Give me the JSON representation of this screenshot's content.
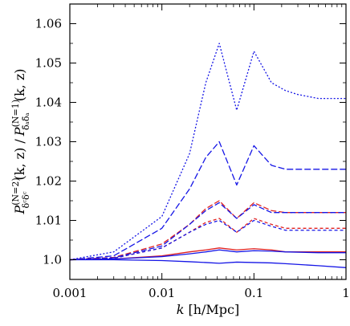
{
  "chart_data": {
    "type": "line",
    "title": "",
    "xlabel": "k [h/Mpc]",
    "xlabel_parts": {
      "var": "k",
      "unit": "[h/Mpc]"
    },
    "ylabel": "P^{(N=2)}_{δᶜδᶜ}(k,z) / P^{(N=1)}_{δ̄_A δ̄_A}(k,z)",
    "ylabel_parts": {
      "p1": "P",
      "sup1": "(N=2)",
      "sub1": "δᶜδᶜ",
      "args1": "(k, z) /",
      "p2": "P",
      "sup2": "(N=1)",
      "sub2": "δ̄ₐδ̄ₐ",
      "args2": "(k, z)"
    },
    "x_scale": "log",
    "xlim": [
      0.001,
      1
    ],
    "ylim": [
      0.995,
      1.065
    ],
    "x_ticks": [
      0.001,
      0.01,
      0.1,
      1
    ],
    "x_tick_labels": [
      "0.001",
      "0.01",
      "0.1",
      "1"
    ],
    "y_ticks": [
      1.0,
      1.01,
      1.02,
      1.03,
      1.04,
      1.05,
      1.06
    ],
    "y_tick_labels": [
      "1.0",
      "1.01",
      "1.02",
      "1.03",
      "1.04",
      "1.05",
      "1.06"
    ],
    "grid": false,
    "legend": "none",
    "colors": {
      "blue": "#1515e6",
      "red": "#e02020"
    },
    "series": [
      {
        "color": "#1515e6",
        "dash": "2,2.2",
        "values": [
          [
            0.001,
            1.0
          ],
          [
            0.003,
            1.002
          ],
          [
            0.01,
            1.011
          ],
          [
            0.02,
            1.027
          ],
          [
            0.03,
            1.045
          ],
          [
            0.042,
            1.055
          ],
          [
            0.065,
            1.038
          ],
          [
            0.1,
            1.053
          ],
          [
            0.155,
            1.045
          ],
          [
            0.22,
            1.043
          ],
          [
            0.3,
            1.042
          ],
          [
            0.5,
            1.041
          ],
          [
            1,
            1.041
          ]
        ]
      },
      {
        "color": "#1515e6",
        "dash": "8,3",
        "values": [
          [
            0.001,
            1.0
          ],
          [
            0.003,
            1.001
          ],
          [
            0.01,
            1.008
          ],
          [
            0.02,
            1.018
          ],
          [
            0.03,
            1.026
          ],
          [
            0.042,
            1.03
          ],
          [
            0.065,
            1.019
          ],
          [
            0.1,
            1.029
          ],
          [
            0.155,
            1.024
          ],
          [
            0.22,
            1.023
          ],
          [
            0.5,
            1.023
          ],
          [
            1,
            1.023
          ]
        ]
      },
      {
        "color": "#e02020",
        "dash": "7,3",
        "values": [
          [
            0.001,
            1.0
          ],
          [
            0.003,
            1.0006
          ],
          [
            0.01,
            1.004
          ],
          [
            0.02,
            1.009
          ],
          [
            0.03,
            1.013
          ],
          [
            0.042,
            1.015
          ],
          [
            0.065,
            1.0105
          ],
          [
            0.1,
            1.0145
          ],
          [
            0.155,
            1.0125
          ],
          [
            0.22,
            1.012
          ],
          [
            0.5,
            1.012
          ],
          [
            1,
            1.012
          ]
        ]
      },
      {
        "color": "#1515e6",
        "dash": "7,3",
        "values": [
          [
            0.001,
            1.0
          ],
          [
            0.003,
            1.0005
          ],
          [
            0.01,
            1.0035
          ],
          [
            0.02,
            1.009
          ],
          [
            0.03,
            1.0125
          ],
          [
            0.042,
            1.0145
          ],
          [
            0.065,
            1.0105
          ],
          [
            0.1,
            1.014
          ],
          [
            0.155,
            1.012
          ],
          [
            0.22,
            1.012
          ],
          [
            0.5,
            1.012
          ],
          [
            1,
            1.012
          ]
        ]
      },
      {
        "color": "#e02020",
        "dash": "4,3",
        "values": [
          [
            0.001,
            1.0
          ],
          [
            0.003,
            1.0004
          ],
          [
            0.01,
            1.003
          ],
          [
            0.02,
            1.007
          ],
          [
            0.03,
            1.0095
          ],
          [
            0.042,
            1.0105
          ],
          [
            0.065,
            1.007
          ],
          [
            0.1,
            1.0105
          ],
          [
            0.155,
            1.009
          ],
          [
            0.22,
            1.008
          ],
          [
            0.5,
            1.008
          ],
          [
            1,
            1.008
          ]
        ]
      },
      {
        "color": "#1515e6",
        "dash": "4,3",
        "values": [
          [
            0.001,
            1.0
          ],
          [
            0.003,
            1.0004
          ],
          [
            0.01,
            1.003
          ],
          [
            0.02,
            1.007
          ],
          [
            0.03,
            1.009
          ],
          [
            0.042,
            1.01
          ],
          [
            0.065,
            1.007
          ],
          [
            0.1,
            1.01
          ],
          [
            0.155,
            1.0085
          ],
          [
            0.22,
            1.0075
          ],
          [
            0.5,
            1.0075
          ],
          [
            1,
            1.0075
          ]
        ]
      },
      {
        "color": "#e02020",
        "dash": "",
        "values": [
          [
            0.001,
            1.0
          ],
          [
            0.003,
            1.0002
          ],
          [
            0.01,
            1.001
          ],
          [
            0.02,
            1.002
          ],
          [
            0.03,
            1.0025
          ],
          [
            0.042,
            1.003
          ],
          [
            0.065,
            1.0025
          ],
          [
            0.1,
            1.0028
          ],
          [
            0.155,
            1.0025
          ],
          [
            0.22,
            1.002
          ],
          [
            0.5,
            1.002
          ],
          [
            1,
            1.002
          ]
        ]
      },
      {
        "color": "#1515e6",
        "dash": "",
        "values": [
          [
            0.001,
            1.0
          ],
          [
            0.003,
            1.0002
          ],
          [
            0.01,
            1.0008
          ],
          [
            0.02,
            1.0015
          ],
          [
            0.03,
            1.002
          ],
          [
            0.042,
            1.0025
          ],
          [
            0.065,
            1.002
          ],
          [
            0.1,
            1.0023
          ],
          [
            0.155,
            1.0022
          ],
          [
            0.22,
            1.002
          ],
          [
            0.5,
            1.0018
          ],
          [
            1,
            1.0018
          ]
        ]
      },
      {
        "color": "#1515e6",
        "dash": "",
        "values": [
          [
            0.001,
            1.0
          ],
          [
            0.003,
            1.0
          ],
          [
            0.01,
            0.9998
          ],
          [
            0.02,
            0.9995
          ],
          [
            0.03,
            0.9993
          ],
          [
            0.042,
            0.9991
          ],
          [
            0.065,
            0.9994
          ],
          [
            0.1,
            0.9993
          ],
          [
            0.155,
            0.9992
          ],
          [
            0.22,
            0.999
          ],
          [
            0.5,
            0.9985
          ],
          [
            1,
            0.998
          ]
        ]
      }
    ]
  }
}
